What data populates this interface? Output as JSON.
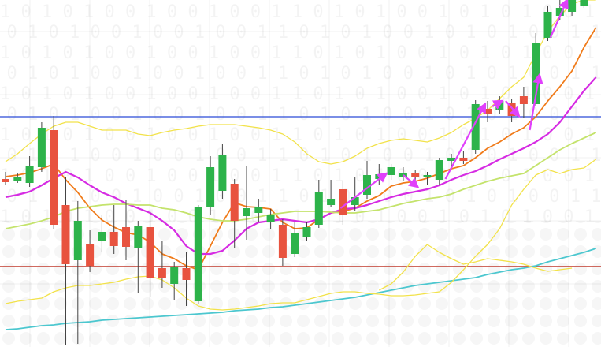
{
  "colors": {
    "background": "#ffffff",
    "up": "#2db34a",
    "down": "#e8533f",
    "wick": "#444444",
    "resistance": "#2a4bd7",
    "support": "#c0392b"
  },
  "icons": {
    "arrow": "magenta-arrow-icon"
  },
  "background": {
    "pattern_text": [
      "1 0 1 0 1 0 0 1 0 0 1 0 0 1 1 0 1 0 1 0 0 1 0 1 0 1 0 0 1"
    ]
  },
  "chart_data": {
    "type": "candlestick",
    "title": "",
    "xlabel": "",
    "ylabel": "",
    "ylim": [
      0,
      440
    ],
    "y_note": "price expressed on an unlabelled linear scale where 440 = top, 0 = bottom",
    "grid": true,
    "legend": "none",
    "candles": [
      {
        "o": 213,
        "c": 209,
        "h": 222,
        "l": 205
      },
      {
        "o": 211,
        "c": 216,
        "h": 220,
        "l": 208
      },
      {
        "o": 208,
        "c": 230,
        "h": 242,
        "l": 203
      },
      {
        "o": 228,
        "c": 278,
        "h": 285,
        "l": 222
      },
      {
        "o": 275,
        "c": 155,
        "h": 293,
        "l": 150
      },
      {
        "o": 180,
        "c": 105,
        "h": 215,
        "l": 3
      },
      {
        "o": 110,
        "c": 160,
        "h": 185,
        "l": 4
      },
      {
        "o": 130,
        "c": 103,
        "h": 148,
        "l": 95
      },
      {
        "o": 135,
        "c": 146,
        "h": 168,
        "l": 120
      },
      {
        "o": 146,
        "c": 128,
        "h": 180,
        "l": 118
      },
      {
        "o": 152,
        "c": 127,
        "h": 186,
        "l": 110
      },
      {
        "o": 125,
        "c": 153,
        "h": 160,
        "l": 68
      },
      {
        "o": 152,
        "c": 87,
        "h": 172,
        "l": 63
      },
      {
        "o": 100,
        "c": 87,
        "h": 135,
        "l": 75
      },
      {
        "o": 80,
        "c": 102,
        "h": 108,
        "l": 60
      },
      {
        "o": 100,
        "c": 85,
        "h": 120,
        "l": 52
      },
      {
        "o": 58,
        "c": 177,
        "h": 180,
        "l": 55
      },
      {
        "o": 178,
        "c": 228,
        "h": 242,
        "l": 168
      },
      {
        "o": 198,
        "c": 243,
        "h": 258,
        "l": 188
      },
      {
        "o": 207,
        "c": 160,
        "h": 213,
        "l": 126
      },
      {
        "o": 166,
        "c": 176,
        "h": 230,
        "l": 136
      },
      {
        "o": 170,
        "c": 178,
        "h": 188,
        "l": 158
      },
      {
        "o": 158,
        "c": 168,
        "h": 175,
        "l": 150
      },
      {
        "o": 155,
        "c": 113,
        "h": 162,
        "l": 103
      },
      {
        "o": 118,
        "c": 145,
        "h": 158,
        "l": 114
      },
      {
        "o": 140,
        "c": 152,
        "h": 158,
        "l": 135
      },
      {
        "o": 155,
        "c": 196,
        "h": 212,
        "l": 151
      },
      {
        "o": 180,
        "c": 188,
        "h": 212,
        "l": 178
      },
      {
        "o": 200,
        "c": 168,
        "h": 210,
        "l": 155
      },
      {
        "o": 180,
        "c": 190,
        "h": 215,
        "l": 172
      },
      {
        "o": 193,
        "c": 218,
        "h": 236,
        "l": 188
      },
      {
        "o": 213,
        "c": 219,
        "h": 232,
        "l": 205
      },
      {
        "o": 218,
        "c": 228,
        "h": 232,
        "l": 212
      },
      {
        "o": 216,
        "c": 220,
        "h": 228,
        "l": 210
      },
      {
        "o": 220,
        "c": 215,
        "h": 225,
        "l": 208
      },
      {
        "o": 215,
        "c": 218,
        "h": 222,
        "l": 205
      },
      {
        "o": 212,
        "c": 237,
        "h": 240,
        "l": 205
      },
      {
        "o": 236,
        "c": 240,
        "h": 245,
        "l": 230
      },
      {
        "o": 240,
        "c": 236,
        "h": 248,
        "l": 232
      },
      {
        "o": 250,
        "c": 308,
        "h": 313,
        "l": 245
      },
      {
        "o": 302,
        "c": 295,
        "h": 312,
        "l": 285
      },
      {
        "o": 300,
        "c": 312,
        "h": 318,
        "l": 296
      },
      {
        "o": 310,
        "c": 293,
        "h": 315,
        "l": 285
      },
      {
        "o": 318,
        "c": 308,
        "h": 330,
        "l": 290
      },
      {
        "o": 308,
        "c": 385,
        "h": 398,
        "l": 305
      },
      {
        "o": 392,
        "c": 425,
        "h": 432,
        "l": 388
      },
      {
        "o": 420,
        "c": 430,
        "h": 440,
        "l": 415
      },
      {
        "o": 425,
        "c": 440,
        "h": 440,
        "l": 420
      },
      {
        "o": 432,
        "c": 440,
        "h": 440,
        "l": 430
      }
    ],
    "levels": {
      "resistance": 292,
      "support": 102
    },
    "series": [
      {
        "kind": "ema-fast",
        "color": "#f07b1a",
        "values": [
          216,
          218,
          221,
          226,
          232,
          212,
          196,
          176,
          161,
          152,
          145,
          142,
          133,
          118,
          112,
          103,
          98,
          128,
          158,
          183,
          178,
          177,
          175,
          158,
          150,
          151,
          162,
          170,
          172,
          176,
          185,
          192,
          204,
          208,
          210,
          214,
          220,
          226,
          230,
          240,
          252,
          260,
          270,
          278,
          292,
          312,
          330,
          350,
          380,
          405
        ]
      },
      {
        "kind": "ema-mid",
        "color": "#d62be3",
        "values": [
          190,
          193,
          197,
          205,
          214,
          222,
          215,
          205,
          196,
          190,
          182,
          176,
          170,
          160,
          148,
          128,
          118,
          118,
          122,
          135,
          150,
          158,
          160,
          162,
          160,
          158,
          162,
          170,
          175,
          176,
          180,
          185,
          190,
          194,
          197,
          200,
          205,
          212,
          218,
          223,
          230,
          238,
          245,
          252,
          260,
          270,
          285,
          305,
          325,
          342
        ]
      },
      {
        "kind": "ma-slow",
        "color": "#c4e36c",
        "values": [
          150,
          153,
          156,
          160,
          165,
          172,
          176,
          178,
          180,
          181,
          181,
          180,
          180,
          176,
          174,
          170,
          165,
          162,
          160,
          160,
          162,
          165,
          168,
          170,
          172,
          172,
          172,
          171,
          170,
          170,
          172,
          174,
          178,
          182,
          185,
          188,
          190,
          194,
          200,
          205,
          210,
          214,
          217,
          220,
          230,
          240,
          250,
          258,
          265,
          272
        ]
      },
      {
        "kind": "ma-long",
        "color": "#4cc7cf",
        "values": [
          22,
          23,
          25,
          27,
          28,
          30,
          31,
          32,
          34,
          35,
          36,
          37,
          38,
          39,
          40,
          41,
          42,
          43,
          44,
          46,
          47,
          48,
          50,
          51,
          53,
          55,
          57,
          59,
          61,
          63,
          66,
          69,
          72,
          75,
          78,
          80,
          82,
          84,
          86,
          88,
          92,
          95,
          98,
          100,
          103,
          108,
          112,
          116,
          120,
          125
        ]
      },
      {
        "kind": "band-upper",
        "color": "#f2e24a",
        "values": [
          235,
          245,
          258,
          270,
          280,
          285,
          285,
          280,
          275,
          275,
          275,
          270,
          268,
          272,
          275,
          277,
          280,
          282,
          282,
          282,
          280,
          278,
          275,
          270,
          260,
          245,
          235,
          232,
          235,
          242,
          252,
          258,
          262,
          264,
          262,
          260,
          265,
          272,
          282,
          290,
          300,
          315,
          330,
          342,
          372,
          400,
          420,
          435,
          440,
          440
        ]
      },
      {
        "kind": "band-lower",
        "color": "#f2e24a",
        "values": [
          55,
          58,
          60,
          62,
          70,
          75,
          78,
          78,
          80,
          82,
          86,
          89,
          90,
          85,
          75,
          62,
          52,
          48,
          47,
          48,
          50,
          52,
          55,
          56,
          56,
          60,
          64,
          68,
          70,
          70,
          68,
          67,
          65,
          65,
          66,
          68,
          70,
          82,
          98,
          115,
          130,
          150,
          180,
          200,
          218,
          225,
          220,
          225,
          227,
          238
        ]
      },
      {
        "kind": "oscillator",
        "color": "#f2e24a",
        "values": [
          null,
          null,
          null,
          null,
          null,
          null,
          null,
          null,
          null,
          null,
          null,
          null,
          null,
          null,
          null,
          null,
          null,
          null,
          null,
          null,
          null,
          null,
          null,
          null,
          null,
          null,
          null,
          null,
          null,
          null,
          null,
          72,
          80,
          95,
          115,
          130,
          120,
          112,
          105,
          108,
          112,
          110,
          108,
          105,
          100,
          96,
          98,
          100,
          null,
          null
        ]
      }
    ],
    "arrows": [
      {
        "from": [
          27.8,
          176
        ],
        "to": [
          31.6,
          220
        ],
        "dir": "up"
      },
      {
        "from": [
          33.0,
          218
        ],
        "to": [
          34.2,
          203
        ],
        "dir": "down"
      },
      {
        "from": [
          36.5,
          213
        ],
        "to": [
          39.8,
          308
        ],
        "dir": "up"
      },
      {
        "from": [
          40.4,
          305
        ],
        "to": [
          41.2,
          312
        ],
        "dir": "up"
      },
      {
        "from": [
          41.5,
          312
        ],
        "to": [
          42.6,
          293
        ],
        "dir": "down"
      },
      {
        "from": [
          43.5,
          275
        ],
        "to": [
          44.3,
          345
        ],
        "dir": "up"
      },
      {
        "from": [
          45.2,
          392
        ],
        "to": [
          46.6,
          440
        ],
        "dir": "up"
      }
    ]
  }
}
